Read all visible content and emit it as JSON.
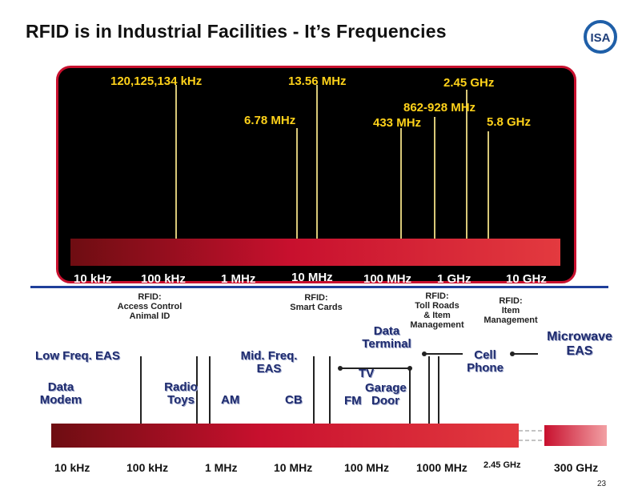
{
  "slide_title": "RFID is in Industrial Facilities - It’s Frequencies",
  "logo_text": "ISA",
  "colors": {
    "accent_red": "#c8102e",
    "freq_yellow": "#ffd21a",
    "rule_blue": "#1f3f9a",
    "app_navy": "#1f2c6f"
  },
  "rfid_bands": {
    "lf": "120,125,134 kHz",
    "hf": "13.56 MHz",
    "mw": "2.45 GHz",
    "ism678": "6.78 MHz",
    "uhf": "862-928 MHz",
    "uhf433": "433 MHz",
    "ghz58": "5.8 GHz"
  },
  "top_axis": [
    "10 kHz",
    "100 kHz",
    "1 MHz",
    "10 MHz",
    "100 MHz",
    "1 GHz",
    "10 GHz"
  ],
  "rfid_notes": {
    "access": "RFID:\nAccess Control\nAnimal ID",
    "smart": "RFID:\nSmart Cards",
    "toll": "RFID:\nToll Roads\n& Item\nManagement",
    "item": "RFID:\nItem\nManagement"
  },
  "applications": {
    "low_freq_eas": "Low Freq. EAS",
    "data_modem": "Data\nModem",
    "radio_toys": "Radio\nToys",
    "am": "AM",
    "mid_freq_eas": "Mid. Freq.\nEAS",
    "cb": "CB",
    "data_terminal": "Data\nTerminal",
    "tv": "TV",
    "garage": "Garage",
    "fm": "FM",
    "door": "Door",
    "cell_phone": "Cell\nPhone",
    "microwave_eas": "Microwave\nEAS"
  },
  "bottom_axis": [
    "10 kHz",
    "100 kHz",
    "1 MHz",
    "10 MHz",
    "100 MHz",
    "1000 MHz",
    "2.45 GHz",
    "300 GHz"
  ],
  "page_number": "23"
}
